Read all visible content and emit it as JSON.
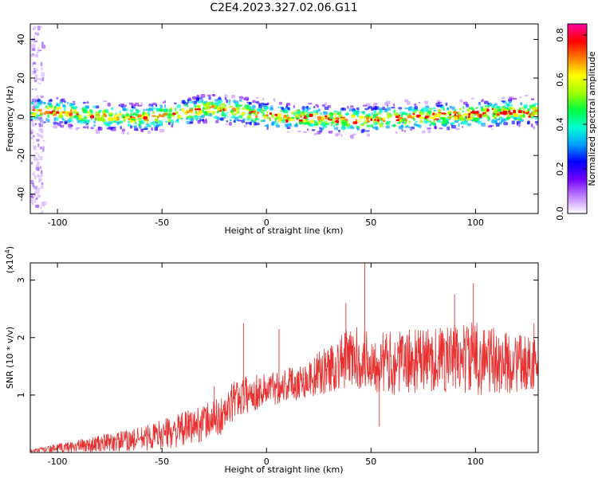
{
  "title": "C2E4.2023.327.02.06.G11",
  "chart_data": [
    {
      "type": "heatmap",
      "xlabel": "Height of straight line (km)",
      "ylabel": "Frequency (Hz)",
      "xlim": [
        -113,
        130
      ],
      "ylim": [
        -50,
        48
      ],
      "x_ticks": [
        -100,
        -50,
        0,
        50,
        100
      ],
      "y_ticks": [
        -40,
        -20,
        0,
        20,
        40
      ],
      "x_tick_labels": [
        "-100",
        "-50",
        "0",
        "50",
        "100"
      ],
      "y_tick_labels": [
        "-40",
        "-20",
        "0",
        "20",
        "40"
      ],
      "band_center_hz": [
        {
          "x": -113,
          "y": 4
        },
        {
          "x": -100,
          "y": 3
        },
        {
          "x": -80,
          "y": 1
        },
        {
          "x": -60,
          "y": 0
        },
        {
          "x": -45,
          "y": 2
        },
        {
          "x": -30,
          "y": 5
        },
        {
          "x": -15,
          "y": 4
        },
        {
          "x": 0,
          "y": 1
        },
        {
          "x": 20,
          "y": 0
        },
        {
          "x": 40,
          "y": -1
        },
        {
          "x": 60,
          "y": 0
        },
        {
          "x": 80,
          "y": 1
        },
        {
          "x": 100,
          "y": 2
        },
        {
          "x": 115,
          "y": 3
        },
        {
          "x": 130,
          "y": 3
        }
      ],
      "colorbar": {
        "label": "Normalized spectral amplitude",
        "range": [
          0,
          0.85
        ],
        "ticks": [
          0.0,
          0.2,
          0.4,
          0.6,
          0.8
        ],
        "tick_labels": [
          "0.0",
          "0.2",
          "0.4",
          "0.6",
          "0.8"
        ],
        "colors": [
          "#ffffff",
          "#c080ff",
          "#7000ff",
          "#0000ff",
          "#00a0ff",
          "#00ffd0",
          "#00ff40",
          "#a0ff00",
          "#ffff00",
          "#ff8000",
          "#ff0000",
          "#ff00a0"
        ]
      }
    },
    {
      "type": "line",
      "xlabel": "Height of straight line (km)",
      "ylabel": "SNR (10 * v/v)",
      "y_multiplier_label": "(x10",
      "y_multiplier_exponent": "4",
      "y_multiplier_close": ")",
      "xlim": [
        -113,
        130
      ],
      "ylim": [
        0,
        3.3
      ],
      "x_ticks": [
        -100,
        -50,
        0,
        50,
        100
      ],
      "y_ticks": [
        1,
        2,
        3
      ],
      "x_tick_labels": [
        "-100",
        "-50",
        "0",
        "50",
        "100"
      ],
      "y_tick_labels": [
        "1",
        "2",
        "3"
      ],
      "line_color": "#e83030",
      "envelope": [
        {
          "x": -113,
          "low": 0.0,
          "high": 0.05
        },
        {
          "x": -100,
          "low": 0.0,
          "high": 0.15
        },
        {
          "x": -80,
          "low": 0.0,
          "high": 0.3
        },
        {
          "x": -60,
          "low": 0.02,
          "high": 0.45
        },
        {
          "x": -40,
          "low": 0.1,
          "high": 0.7
        },
        {
          "x": -20,
          "low": 0.3,
          "high": 1.0
        },
        {
          "x": -15,
          "low": 0.6,
          "high": 1.3
        },
        {
          "x": 0,
          "low": 0.8,
          "high": 1.4
        },
        {
          "x": 20,
          "low": 0.95,
          "high": 1.6
        },
        {
          "x": 40,
          "low": 1.1,
          "high": 2.2
        },
        {
          "x": 60,
          "low": 1.0,
          "high": 2.1
        },
        {
          "x": 80,
          "low": 1.05,
          "high": 2.2
        },
        {
          "x": 100,
          "low": 1.0,
          "high": 2.3
        },
        {
          "x": 115,
          "low": 1.0,
          "high": 2.1
        },
        {
          "x": 130,
          "low": 1.1,
          "high": 2.0
        }
      ],
      "spikes": [
        {
          "x": -25,
          "y": 1.15
        },
        {
          "x": -11,
          "y": 2.25
        },
        {
          "x": 6,
          "y": 2.15
        },
        {
          "x": 38,
          "y": 2.6
        },
        {
          "x": 47,
          "y": 3.3
        },
        {
          "x": 54,
          "y": 0.45
        },
        {
          "x": 90,
          "y": 2.75
        },
        {
          "x": 99,
          "y": 2.95
        },
        {
          "x": 128,
          "y": 2.25
        }
      ]
    }
  ]
}
